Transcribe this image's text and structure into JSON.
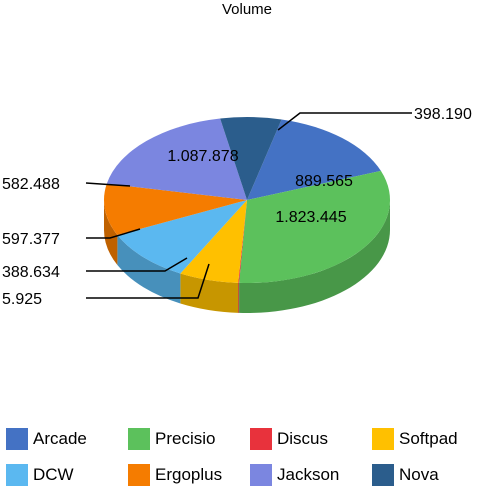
{
  "chart_data": {
    "type": "pie",
    "title": "Volume",
    "slices": [
      {
        "name": "Arcade",
        "value": 889.565,
        "label": "889.565",
        "color": "#4472C4"
      },
      {
        "name": "Precisio",
        "value": 1823.445,
        "label": "1.823.445",
        "color": "#5CC15C"
      },
      {
        "name": "Discus",
        "value": 5.925,
        "label": "5.925",
        "color": "#E8323C"
      },
      {
        "name": "Softpad",
        "value": 388.634,
        "label": "388.634",
        "color": "#FFC000"
      },
      {
        "name": "DCW",
        "value": 597.377,
        "label": "597.377",
        "color": "#5BB8F0"
      },
      {
        "name": "Ergoplus",
        "value": 582.488,
        "label": "582.488",
        "color": "#F57C00"
      },
      {
        "name": "Jackson",
        "value": 1087.878,
        "label": "1.087.878",
        "color": "#7B86E0"
      },
      {
        "name": "Nova",
        "value": 398.19,
        "label": "398.190",
        "color": "#2B5D8C"
      }
    ],
    "legend_position": "bottom"
  }
}
